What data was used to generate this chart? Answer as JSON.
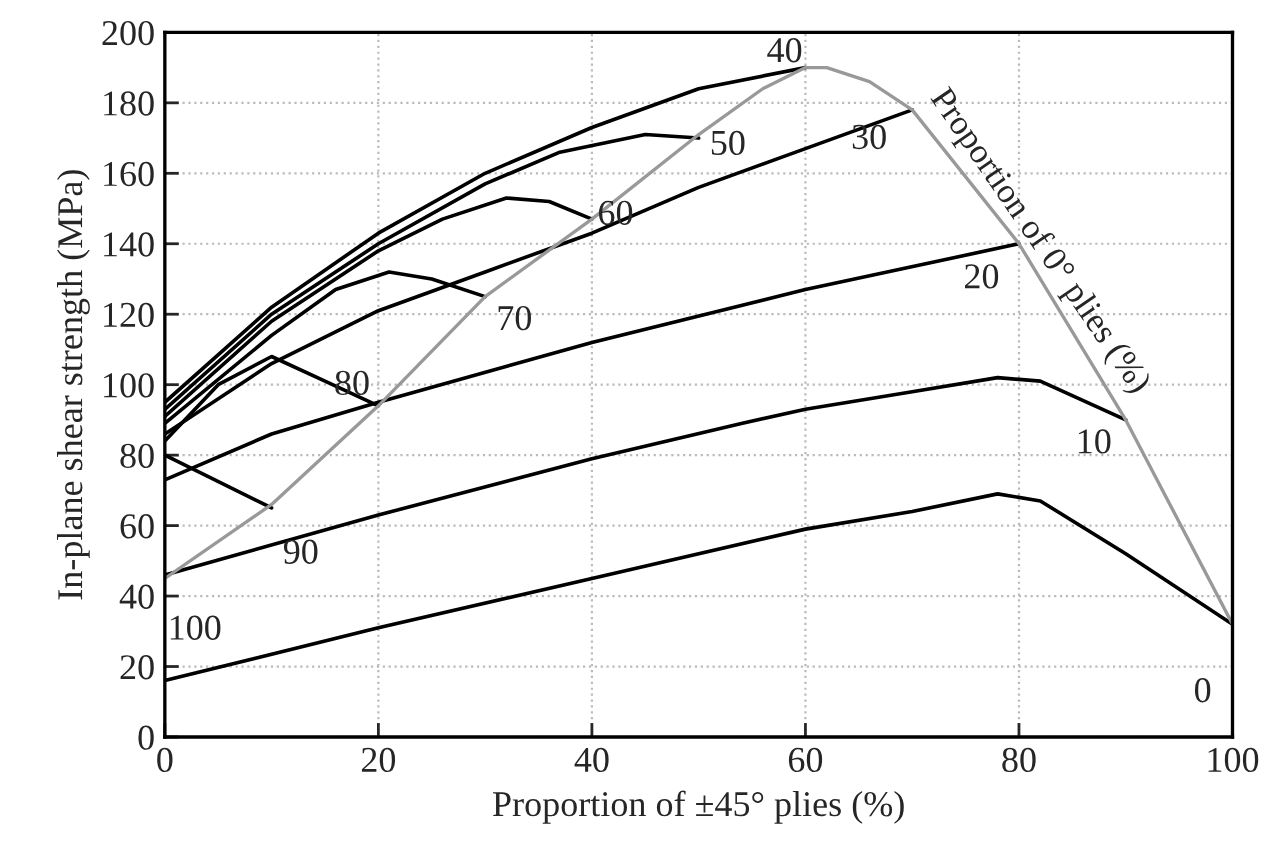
{
  "chart_data": {
    "type": "line",
    "xlabel": "Proportion of ±45° plies (%)",
    "ylabel": "In-plane shear strength (MPa)",
    "xlim": [
      0,
      100
    ],
    "ylim": [
      0,
      200
    ],
    "xticks": [
      0,
      20,
      40,
      60,
      80,
      100
    ],
    "yticks": [
      0,
      20,
      40,
      60,
      80,
      100,
      120,
      140,
      160,
      180,
      200
    ],
    "grid": true,
    "legend": false,
    "marker": "none",
    "line_style": "solid",
    "series": [
      {
        "name": "0",
        "color": "#000000",
        "x": [
          0,
          20,
          40,
          60,
          70,
          78,
          82,
          90,
          100
        ],
        "values": [
          16,
          31,
          45,
          59,
          64,
          69,
          67,
          52,
          32
        ]
      },
      {
        "name": "10",
        "color": "#000000",
        "x": [
          0,
          20,
          40,
          54,
          60,
          70,
          78,
          82,
          90
        ],
        "values": [
          46,
          63,
          79,
          89,
          93,
          98,
          102,
          101,
          90
        ]
      },
      {
        "name": "20",
        "color": "#000000",
        "x": [
          0,
          10,
          20,
          40,
          60,
          80
        ],
        "values": [
          73,
          86,
          95,
          112,
          127,
          140
        ]
      },
      {
        "name": "30",
        "color": "#000000",
        "x": [
          0,
          10,
          20,
          30,
          40,
          50,
          60,
          70
        ],
        "values": [
          86,
          106,
          121,
          132,
          143,
          156,
          167,
          178
        ]
      },
      {
        "name": "40",
        "color": "#000000",
        "x": [
          0,
          10,
          20,
          30,
          40,
          50,
          60
        ],
        "values": [
          95,
          122,
          143,
          160,
          173,
          184,
          190
        ]
      },
      {
        "name": "50",
        "color": "#000000",
        "x": [
          0,
          10,
          20,
          30,
          37,
          45,
          50
        ],
        "values": [
          93,
          120,
          140,
          157,
          166,
          171,
          170
        ]
      },
      {
        "name": "60",
        "color": "#000000",
        "x": [
          0,
          10,
          20,
          26,
          32,
          36,
          40
        ],
        "values": [
          91,
          118,
          138,
          147,
          153,
          152,
          147
        ]
      },
      {
        "name": "70",
        "color": "#000000",
        "x": [
          0,
          10,
          16,
          21,
          25,
          30
        ],
        "values": [
          89,
          114,
          127,
          132,
          130,
          125
        ]
      },
      {
        "name": "80",
        "color": "#000000",
        "x": [
          0,
          5,
          10,
          15,
          20
        ],
        "values": [
          84,
          100,
          108,
          101,
          94
        ]
      },
      {
        "name": "90",
        "color": "#000000",
        "x": [
          0,
          10
        ],
        "values": [
          80,
          65
        ]
      },
      {
        "color": "#999999",
        "x": [
          0,
          10,
          20,
          30,
          40,
          50,
          56,
          60,
          62,
          66,
          70,
          80,
          90,
          100
        ],
        "values": [
          45,
          66,
          94,
          125,
          147,
          171,
          184,
          190,
          190,
          186,
          178,
          140,
          90,
          32
        ]
      }
    ],
    "annotations": [
      {
        "text": "100",
        "x": 0,
        "y": 45
      },
      {
        "text": "Proportion of 0° plies (%)",
        "x": 70,
        "y": 178
      }
    ]
  }
}
